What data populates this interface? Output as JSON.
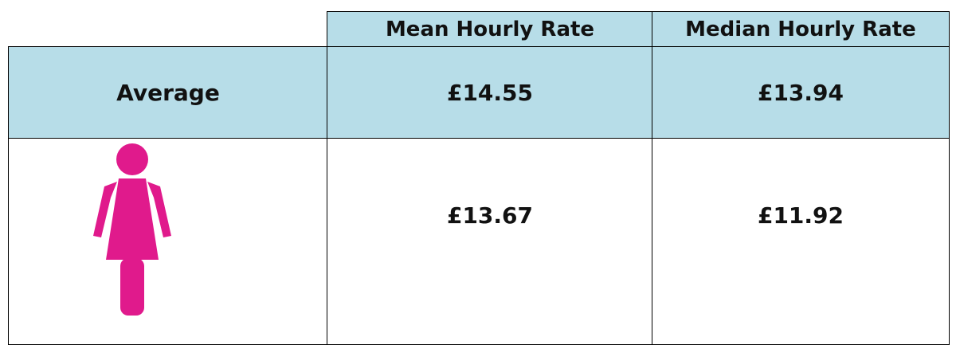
{
  "table": {
    "columns": [
      "Mean Hourly Rate",
      "Median Hourly Rate"
    ],
    "rows": [
      {
        "label": "Average",
        "values": [
          "£14.55",
          "£13.94"
        ]
      },
      {
        "values": [
          "£13.67",
          "£11.92"
        ]
      }
    ]
  }
}
